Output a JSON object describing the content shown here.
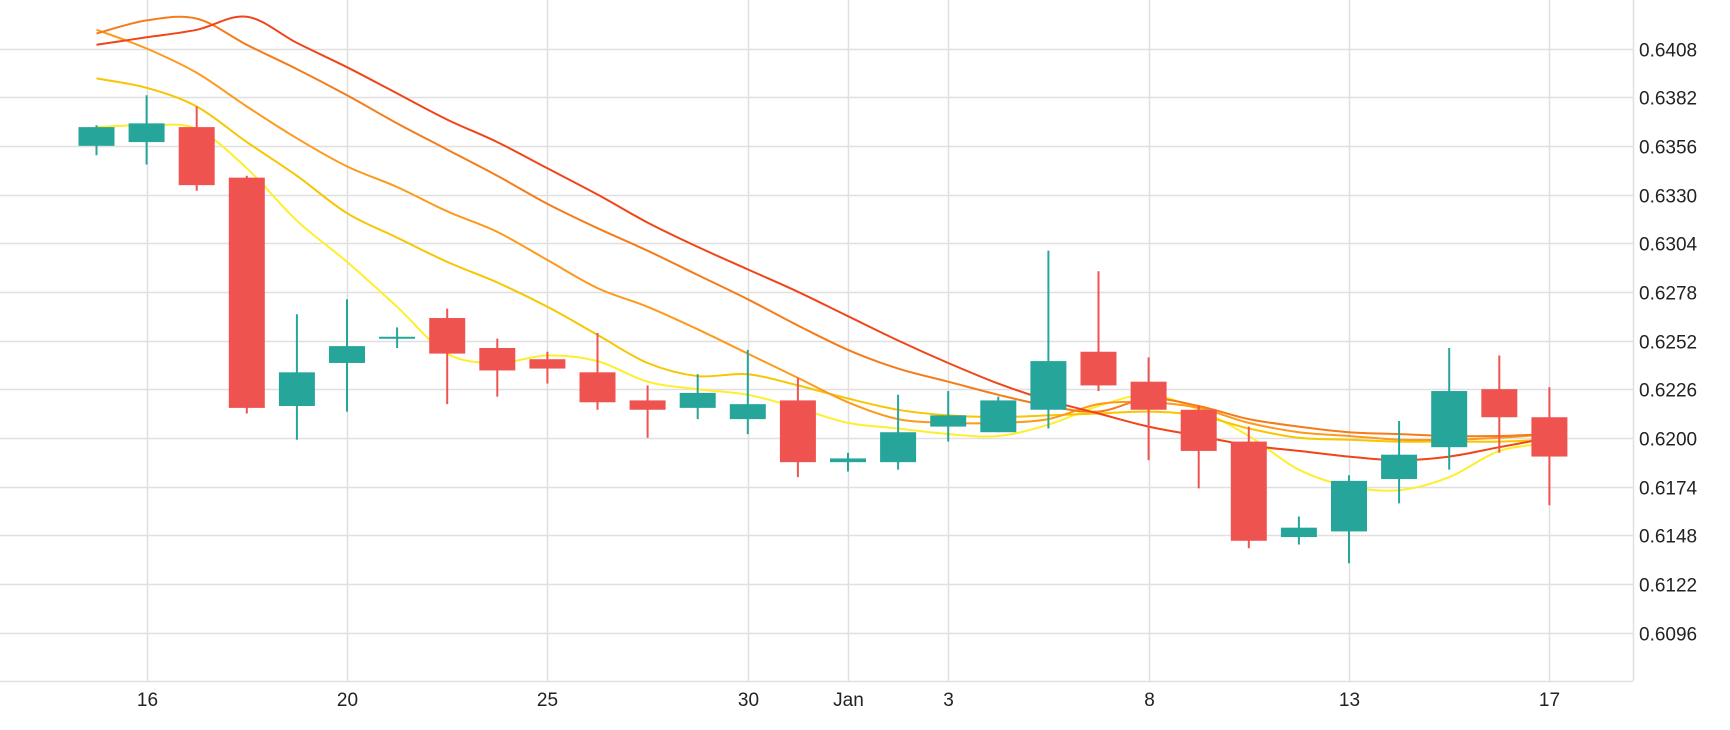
{
  "chart_data": {
    "type": "candlestick",
    "title": "",
    "xlabel": "",
    "ylabel": "",
    "ylim": [
      0.607,
      0.6432
    ],
    "y_ticks": [
      0.6096,
      0.6122,
      0.6148,
      0.6174,
      0.62,
      0.6226,
      0.6252,
      0.6278,
      0.6304,
      0.633,
      0.6356,
      0.6382,
      0.6408
    ],
    "y_tick_labels": [
      "0.6096",
      "0.6122",
      "0.6148",
      "0.6174",
      "0.6200",
      "0.6226",
      "0.6252",
      "0.6278",
      "0.6304",
      "0.6330",
      "0.6356",
      "0.6382",
      "0.6408"
    ],
    "x_tick_labels": [
      "16",
      "20",
      "25",
      "30",
      "Jan",
      "3",
      "8",
      "13",
      "17"
    ],
    "x_tick_index": [
      1,
      5,
      9,
      13,
      15,
      17,
      21,
      25,
      29
    ],
    "grid": true,
    "y_axis_position": "right",
    "colors": {
      "up": "#26a69a",
      "down": "#ef5350",
      "grid": "#e0e0e0"
    },
    "candles": [
      {
        "o": 0.6356,
        "h": 0.6367,
        "l": 0.6351,
        "c": 0.6366
      },
      {
        "o": 0.6358,
        "h": 0.6383,
        "l": 0.6346,
        "c": 0.6368
      },
      {
        "o": 0.6366,
        "h": 0.6377,
        "l": 0.6332,
        "c": 0.6335
      },
      {
        "o": 0.6339,
        "h": 0.634,
        "l": 0.6213,
        "c": 0.6216
      },
      {
        "o": 0.6217,
        "h": 0.6266,
        "l": 0.6199,
        "c": 0.6235
      },
      {
        "o": 0.624,
        "h": 0.6274,
        "l": 0.6214,
        "c": 0.6249
      },
      {
        "o": 0.6253,
        "h": 0.6259,
        "l": 0.6248,
        "c": 0.6254
      },
      {
        "o": 0.6264,
        "h": 0.6269,
        "l": 0.6218,
        "c": 0.6245
      },
      {
        "o": 0.6248,
        "h": 0.6253,
        "l": 0.6222,
        "c": 0.6236
      },
      {
        "o": 0.6242,
        "h": 0.6246,
        "l": 0.6229,
        "c": 0.6237
      },
      {
        "o": 0.6235,
        "h": 0.6256,
        "l": 0.6215,
        "c": 0.6219
      },
      {
        "o": 0.622,
        "h": 0.6228,
        "l": 0.62,
        "c": 0.6215
      },
      {
        "o": 0.6216,
        "h": 0.6234,
        "l": 0.621,
        "c": 0.6224
      },
      {
        "o": 0.621,
        "h": 0.6247,
        "l": 0.6202,
        "c": 0.6218
      },
      {
        "o": 0.622,
        "h": 0.6232,
        "l": 0.6179,
        "c": 0.6187
      },
      {
        "o": 0.6187,
        "h": 0.6192,
        "l": 0.6182,
        "c": 0.6189
      },
      {
        "o": 0.6187,
        "h": 0.6223,
        "l": 0.6183,
        "c": 0.6203
      },
      {
        "o": 0.6206,
        "h": 0.6225,
        "l": 0.6198,
        "c": 0.6212
      },
      {
        "o": 0.6203,
        "h": 0.6222,
        "l": 0.6203,
        "c": 0.622
      },
      {
        "o": 0.6215,
        "h": 0.63,
        "l": 0.6205,
        "c": 0.6241
      },
      {
        "o": 0.6246,
        "h": 0.6289,
        "l": 0.6225,
        "c": 0.6228
      },
      {
        "o": 0.623,
        "h": 0.6243,
        "l": 0.6188,
        "c": 0.6215
      },
      {
        "o": 0.6215,
        "h": 0.6217,
        "l": 0.6173,
        "c": 0.6193
      },
      {
        "o": 0.6198,
        "h": 0.6206,
        "l": 0.6141,
        "c": 0.6145
      },
      {
        "o": 0.6147,
        "h": 0.6158,
        "l": 0.6143,
        "c": 0.6152
      },
      {
        "o": 0.615,
        "h": 0.618,
        "l": 0.6133,
        "c": 0.6177
      },
      {
        "o": 0.6178,
        "h": 0.6209,
        "l": 0.6165,
        "c": 0.6191
      },
      {
        "o": 0.6195,
        "h": 0.6248,
        "l": 0.6183,
        "c": 0.6225
      },
      {
        "o": 0.6226,
        "h": 0.6244,
        "l": 0.6192,
        "c": 0.6211
      },
      {
        "o": 0.6211,
        "h": 0.6227,
        "l": 0.6164,
        "c": 0.619
      }
    ],
    "series": [
      {
        "color": "#ffee2e",
        "values": [
          0.6366,
          0.6367,
          0.6365,
          0.6344,
          0.6316,
          0.6294,
          0.627,
          0.6245,
          0.624,
          0.6244,
          0.6241,
          0.623,
          0.6226,
          0.6223,
          0.6216,
          0.6208,
          0.6205,
          0.6202,
          0.6201,
          0.6207,
          0.6217,
          0.6223,
          0.6215,
          0.6201,
          0.6183,
          0.6174,
          0.6172,
          0.6179,
          0.6193,
          0.6197
        ]
      },
      {
        "color": "#f7c600",
        "values": [
          0.6392,
          0.6387,
          0.6377,
          0.6358,
          0.634,
          0.632,
          0.6307,
          0.6294,
          0.6283,
          0.627,
          0.6255,
          0.624,
          0.6233,
          0.6234,
          0.6228,
          0.6221,
          0.6215,
          0.6212,
          0.6211,
          0.6212,
          0.6213,
          0.6214,
          0.6212,
          0.6205,
          0.62,
          0.6199,
          0.6198,
          0.6198,
          0.6198,
          0.6199
        ]
      },
      {
        "color": "#fd9a1c",
        "values": [
          0.6418,
          0.6408,
          0.6395,
          0.6377,
          0.636,
          0.6345,
          0.6334,
          0.6321,
          0.631,
          0.6295,
          0.628,
          0.627,
          0.6258,
          0.6245,
          0.6232,
          0.6219,
          0.621,
          0.6208,
          0.6208,
          0.621,
          0.6218,
          0.6219,
          0.6216,
          0.6208,
          0.6203,
          0.6201,
          0.6199,
          0.6199,
          0.62,
          0.6202
        ]
      },
      {
        "color": "#f47c1b",
        "values": [
          0.6416,
          0.6423,
          0.6424,
          0.641,
          0.6397,
          0.6383,
          0.6368,
          0.6354,
          0.634,
          0.6325,
          0.6312,
          0.63,
          0.6287,
          0.6274,
          0.626,
          0.6247,
          0.6237,
          0.623,
          0.6223,
          0.6217,
          0.6214,
          0.6221,
          0.6217,
          0.621,
          0.6206,
          0.6203,
          0.6202,
          0.6201,
          0.6201,
          0.6202
        ]
      },
      {
        "color": "#f04419",
        "values": [
          0.641,
          0.6414,
          0.6418,
          0.6425,
          0.6411,
          0.6398,
          0.6384,
          0.637,
          0.6358,
          0.6344,
          0.633,
          0.6315,
          0.6302,
          0.629,
          0.6278,
          0.6265,
          0.6252,
          0.624,
          0.6229,
          0.622,
          0.6213,
          0.6206,
          0.6201,
          0.6196,
          0.6193,
          0.619,
          0.6188,
          0.619,
          0.6195,
          0.62
        ]
      }
    ]
  }
}
